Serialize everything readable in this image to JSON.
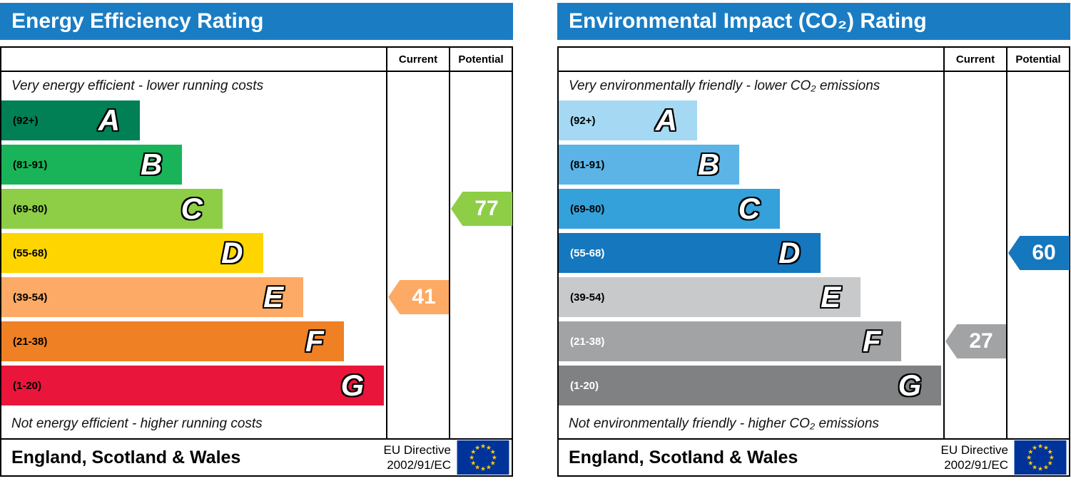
{
  "charts": [
    {
      "title": "Energy Efficiency Rating",
      "columns": {
        "current": "Current",
        "potential": "Potential"
      },
      "top_note": "Very energy efficient - lower running costs",
      "bottom_note": "Not energy efficient - higher running costs",
      "bands": [
        {
          "letter": "A",
          "range": "(92+)",
          "color": "#008054",
          "width_pct": 36,
          "range_color": "#000000"
        },
        {
          "letter": "B",
          "range": "(81-91)",
          "color": "#19b459",
          "width_pct": 47,
          "range_color": "#000000"
        },
        {
          "letter": "C",
          "range": "(69-80)",
          "color": "#8dce46",
          "width_pct": 57.5,
          "range_color": "#000000"
        },
        {
          "letter": "D",
          "range": "(55-68)",
          "color": "#ffd500",
          "width_pct": 68,
          "range_color": "#000000"
        },
        {
          "letter": "E",
          "range": "(39-54)",
          "color": "#fcaa65",
          "width_pct": 78.5,
          "range_color": "#000000"
        },
        {
          "letter": "F",
          "range": "(21-38)",
          "color": "#ef8023",
          "width_pct": 89,
          "range_color": "#000000"
        },
        {
          "letter": "G",
          "range": "(1-20)",
          "color": "#e9153b",
          "width_pct": 99.5,
          "range_color": "#000000"
        }
      ],
      "current": {
        "value": "41",
        "band": 4,
        "color": "#fcaa65"
      },
      "potential": {
        "value": "77",
        "band": 2,
        "color": "#8dce46"
      },
      "footer": {
        "region": "England, Scotland & Wales",
        "directive_line1": "EU Directive",
        "directive_line2": "2002/91/EC"
      }
    },
    {
      "title": "Environmental Impact (CO₂) Rating",
      "columns": {
        "current": "Current",
        "potential": "Potential"
      },
      "top_note": "Very environmentally friendly - lower CO₂ emissions",
      "bottom_note": "Not environmentally friendly - higher CO₂ emissions",
      "bands": [
        {
          "letter": "A",
          "range": "(92+)",
          "color": "#a5d9f3",
          "width_pct": 36,
          "range_color": "#000000"
        },
        {
          "letter": "B",
          "range": "(81-91)",
          "color": "#5bb4e5",
          "width_pct": 47,
          "range_color": "#000000"
        },
        {
          "letter": "C",
          "range": "(69-80)",
          "color": "#35a1da",
          "width_pct": 57.5,
          "range_color": "#000000"
        },
        {
          "letter": "D",
          "range": "(55-68)",
          "color": "#1577bd",
          "width_pct": 68,
          "range_color": "#ffffff"
        },
        {
          "letter": "E",
          "range": "(39-54)",
          "color": "#c8c9ca",
          "width_pct": 78.5,
          "range_color": "#000000"
        },
        {
          "letter": "F",
          "range": "(21-38)",
          "color": "#a2a3a5",
          "width_pct": 89,
          "range_color": "#ffffff"
        },
        {
          "letter": "G",
          "range": "(1-20)",
          "color": "#7f8183",
          "width_pct": 99.5,
          "range_color": "#ffffff"
        }
      ],
      "current": {
        "value": "27",
        "band": 5,
        "color": "#a2a3a5"
      },
      "potential": {
        "value": "60",
        "band": 3,
        "color": "#1577bd"
      },
      "footer": {
        "region": "England, Scotland & Wales",
        "directive_line1": "EU Directive",
        "directive_line2": "2002/91/EC"
      }
    }
  ],
  "chart_data": [
    {
      "type": "bar",
      "title": "Energy Efficiency Rating",
      "categories": [
        "A",
        "B",
        "C",
        "D",
        "E",
        "F",
        "G"
      ],
      "score_ranges": [
        "92+",
        "81-91",
        "69-80",
        "55-68",
        "39-54",
        "21-38",
        "1-20"
      ],
      "band_colors": [
        "#008054",
        "#19b459",
        "#8dce46",
        "#ffd500",
        "#fcaa65",
        "#ef8023",
        "#e9153b"
      ],
      "current": 41,
      "current_band": "E",
      "potential": 77,
      "potential_band": "C",
      "top_note": "Very energy efficient - lower running costs",
      "bottom_note": "Not energy efficient - higher running costs",
      "region": "England, Scotland & Wales",
      "directive": "EU Directive 2002/91/EC"
    },
    {
      "type": "bar",
      "title": "Environmental Impact (CO₂) Rating",
      "categories": [
        "A",
        "B",
        "C",
        "D",
        "E",
        "F",
        "G"
      ],
      "score_ranges": [
        "92+",
        "81-91",
        "69-80",
        "55-68",
        "39-54",
        "21-38",
        "1-20"
      ],
      "band_colors": [
        "#a5d9f3",
        "#5bb4e5",
        "#35a1da",
        "#1577bd",
        "#c8c9ca",
        "#a2a3a5",
        "#7f8183"
      ],
      "current": 27,
      "current_band": "F",
      "potential": 60,
      "potential_band": "D",
      "top_note": "Very environmentally friendly - lower CO₂ emissions",
      "bottom_note": "Not environmentally friendly - higher CO₂ emissions",
      "region": "England, Scotland & Wales",
      "directive": "EU Directive 2002/91/EC"
    }
  ]
}
